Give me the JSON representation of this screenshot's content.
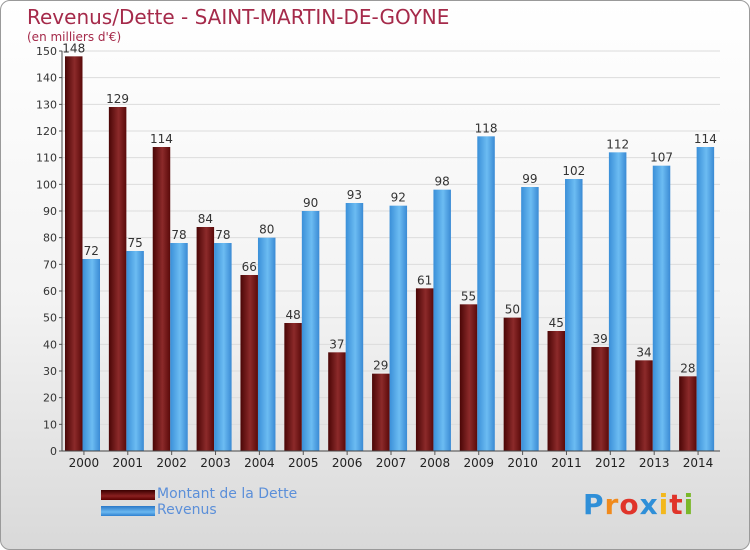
{
  "chart_data": {
    "type": "bar",
    "title": "Revenus/Dette - SAINT-MARTIN-DE-GOYNE",
    "subtitle": "(en milliers d'€)",
    "categories": [
      "2000",
      "2001",
      "2002",
      "2003",
      "2004",
      "2005",
      "2006",
      "2007",
      "2008",
      "2009",
      "2010",
      "2011",
      "2012",
      "2013",
      "2014"
    ],
    "series": [
      {
        "name": "Montant de la Dette",
        "color": "#7a1a1a",
        "values": [
          148,
          129,
          114,
          84,
          66,
          48,
          37,
          29,
          61,
          55,
          50,
          45,
          39,
          34,
          28
        ]
      },
      {
        "name": "Revenus",
        "color": "#4aa3e6",
        "values": [
          72,
          75,
          78,
          78,
          80,
          90,
          93,
          92,
          98,
          118,
          99,
          102,
          112,
          107,
          114
        ]
      }
    ],
    "ylim": [
      0,
      150
    ],
    "yticks": [
      0,
      10,
      20,
      30,
      40,
      50,
      60,
      70,
      80,
      90,
      100,
      110,
      120,
      130,
      140,
      150
    ],
    "grid": true,
    "legend_position": "bottom-left"
  },
  "logo": {
    "text": "Proxiti",
    "letters": [
      "P",
      "r",
      "o",
      "x",
      "i",
      "t",
      "i"
    ],
    "colors": [
      "#2f8fd8",
      "#f08a1c",
      "#e0342a",
      "#2f8fd8",
      "#f3b81c",
      "#e0342a",
      "#7ab82a"
    ]
  }
}
